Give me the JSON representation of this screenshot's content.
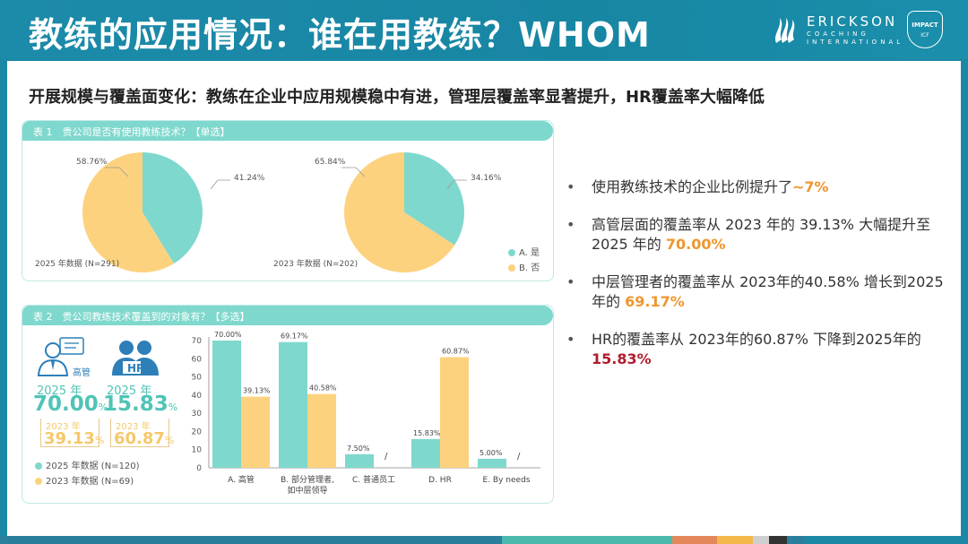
{
  "header": {
    "title": "教练的应用情况：谁在用教练？WHOM",
    "logo_name": "ERICKSON",
    "logo_sub1": "COACHING",
    "logo_sub2": "INTERNATIONAL",
    "badge_main": "IMPACT",
    "badge_sub": "ICF"
  },
  "subtitle": "开展规模与覆盖面变化：教练在企业中应用规模稳中有进，管理层覆盖率显著提升，HR覆盖率大幅降低",
  "table1": {
    "label": "表 1　贵公司是否有使用教练技术？【单选】",
    "legend_a": "A. 是",
    "legend_b": "B. 否",
    "colors": {
      "yes": "#7fd8cd",
      "no": "#fdd27e"
    }
  },
  "table2": {
    "label": "表 2　贵公司教练技术覆盖到的对象有？【多选】",
    "icon_label_exec": "高管",
    "icon_label_hr": "HR",
    "exec_year": "2025 年",
    "exec_value": "70.00",
    "exec_pct": "%",
    "exec_old_year": "2023 年",
    "exec_old_value": "39.13",
    "exec_old_pct": "%",
    "hr_year": "2025 年",
    "hr_value": "15.83",
    "hr_pct": "%",
    "hr_old_year": "2023 年",
    "hr_old_value": "60.87",
    "hr_old_pct": "%",
    "legend_2025": "2025 年数据 (N=120)",
    "legend_2023": "2023 年数据 (N=69)"
  },
  "bullets": {
    "b1_text": "使用教练技术的企业比例提升了",
    "b1_hl": "~7%",
    "b2_text": "高管层面的覆盖率从 2023 年的 39.13% 大幅提升至 2025 年的",
    "b2_hl": "70.00%",
    "b3_text": "中层管理者的覆盖率从 2023年的40.58% 增长到2025年的",
    "b3_hl": "69.17%",
    "b4_text": "HR的覆盖率从 2023年的60.87% 下降到2025年的",
    "b4_hl": "15.83%"
  },
  "chart_data": [
    {
      "type": "pie",
      "caption": "2025 年数据 (N=291)",
      "slices": [
        {
          "label": "A. 是",
          "value": 41.24,
          "text": "41.24%"
        },
        {
          "label": "B. 否",
          "value": 58.76,
          "text": "58.76%"
        }
      ]
    },
    {
      "type": "pie",
      "caption": "2023 年数据 (N=202)",
      "slices": [
        {
          "label": "A. 是",
          "value": 34.16,
          "text": "34.16%"
        },
        {
          "label": "B. 否",
          "value": 65.84,
          "text": "65.84%"
        }
      ]
    },
    {
      "type": "bar",
      "categories": [
        "A. 高管",
        "B. 部分管理者,\n如中层领导",
        "C. 普通员工",
        "D. HR",
        "E. By needs"
      ],
      "category_lines": [
        [
          "A. 高管"
        ],
        [
          "B. 部分管理者,",
          "如中层领导"
        ],
        [
          "C. 普通员工"
        ],
        [
          "D. HR"
        ],
        [
          "E. By needs"
        ]
      ],
      "series": [
        {
          "name": "2025 年数据 (N=120)",
          "color": "#7fd8cd",
          "values": [
            70.0,
            69.17,
            7.5,
            15.83,
            5.0
          ],
          "labels": [
            "70.00%",
            "69.17%",
            "7.50%",
            "15.83%",
            "5.00%"
          ]
        },
        {
          "name": "2023 年数据 (N=69)",
          "color": "#fdd27e",
          "values": [
            39.13,
            40.58,
            null,
            60.87,
            null
          ],
          "labels": [
            "39.13%",
            "40.58%",
            "/",
            "60.87%",
            "/"
          ]
        }
      ],
      "ylim": [
        0,
        70
      ],
      "yticks": [
        0,
        10,
        20,
        30,
        40,
        50,
        60,
        70
      ],
      "grid": false
    }
  ],
  "footer_colors": [
    "#2a7f9c",
    "#4bb9ad",
    "#e2885a",
    "#f2b84b",
    "#cfcfcf",
    "#333333"
  ]
}
